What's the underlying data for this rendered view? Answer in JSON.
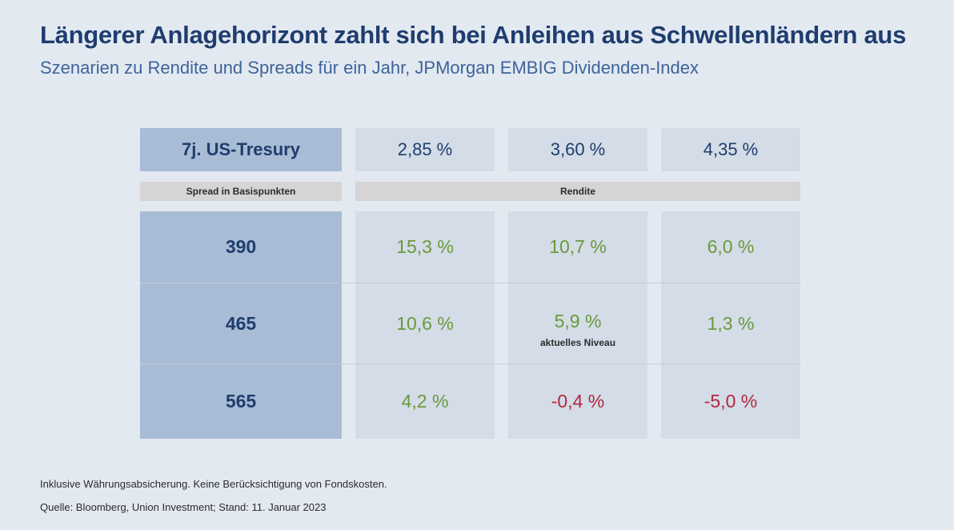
{
  "title": "Längerer Anlagehorizont zahlt sich bei Anleihen aus Schwellenländern aus",
  "subtitle": "Szenarien zu Rendite und Spreads für ein Jahr, JPMorgan EMBIG Dividenden-Index",
  "chart_data": {
    "type": "table",
    "row_header_label": "7j. US-Tresury",
    "columns": [
      "2,85 %",
      "3,60 %",
      "4,35 %"
    ],
    "spread_label": "Spread in Basispunkten",
    "value_label": "Rendite",
    "rows": [
      {
        "spread": "390",
        "values": [
          "15,3 %",
          "10,7 %",
          "6,0 %"
        ]
      },
      {
        "spread": "465",
        "values": [
          "10,6 %",
          "5,9 %",
          "1,3 %"
        ]
      },
      {
        "spread": "565",
        "values": [
          "4,2 %",
          "-0,4 %",
          "-5,0 %"
        ]
      }
    ],
    "numeric_values": [
      [
        15.3,
        10.7,
        6.0
      ],
      [
        10.6,
        5.9,
        1.3
      ],
      [
        4.2,
        -0.4,
        -5.0
      ]
    ],
    "annotation": "aktuelles Niveau",
    "colors": {
      "positive": "#6a9a3a",
      "negative": "#b3273e",
      "header": "#a9bcd6"
    }
  },
  "footnote": "Inklusive Währungsabsicherung. Keine Berücksichtigung von Fondskosten.",
  "source": "Quelle: Bloomberg, Union Investment; Stand: 11. Januar 2023"
}
